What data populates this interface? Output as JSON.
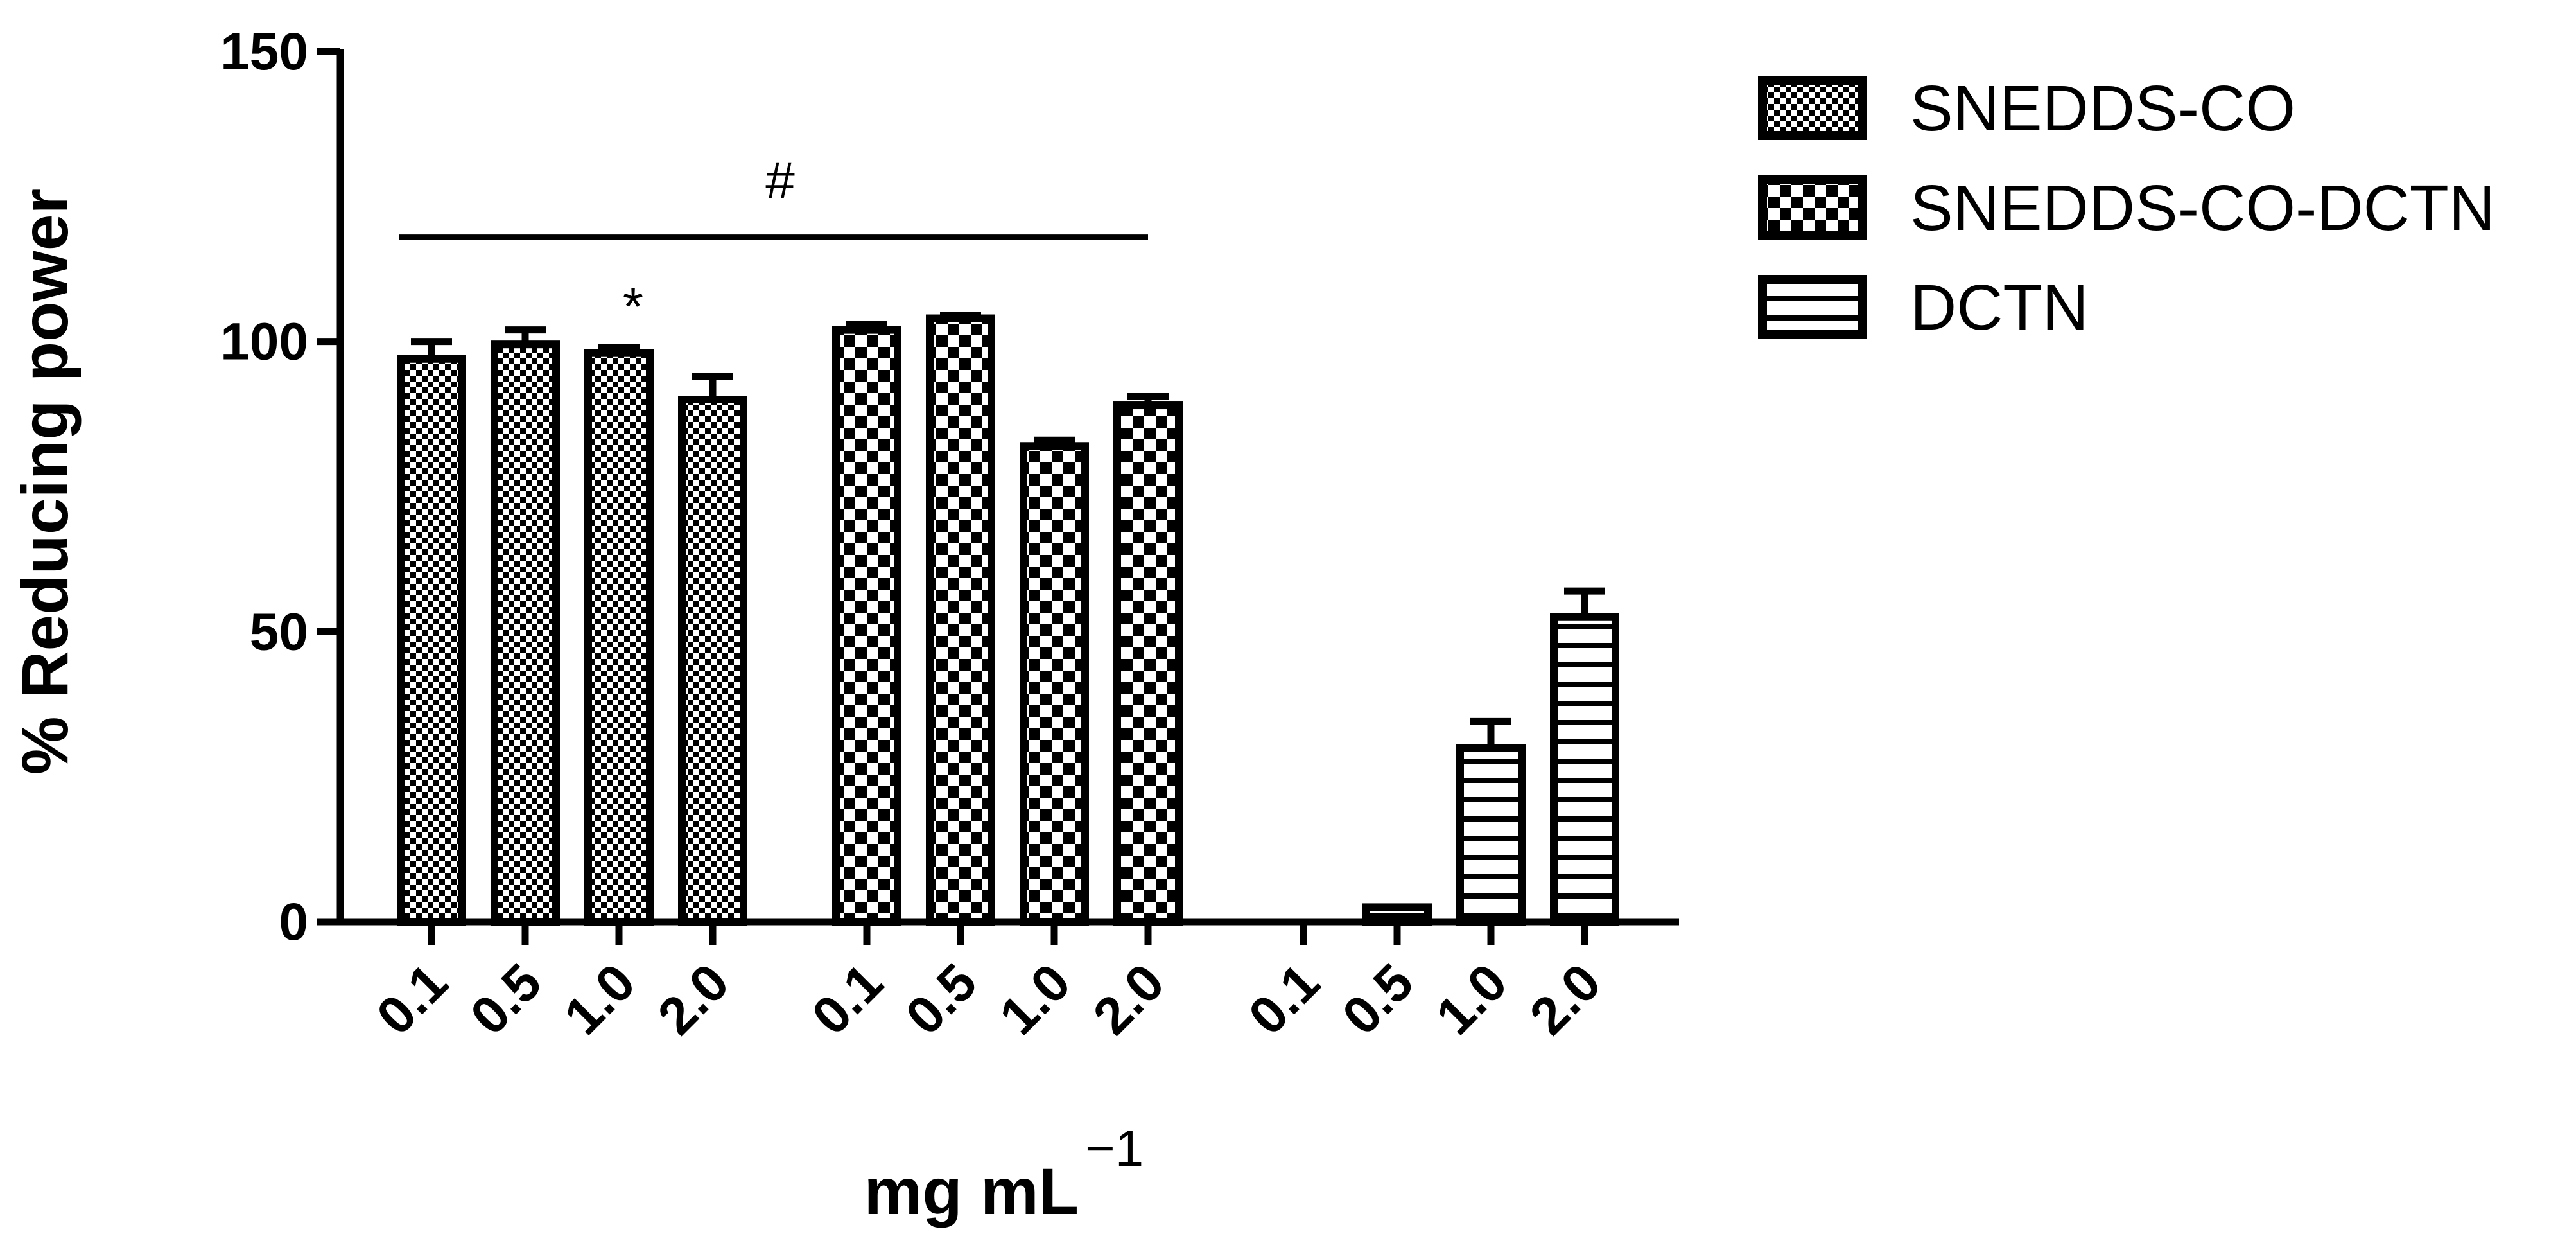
{
  "chart_data": {
    "type": "bar",
    "title": "",
    "ylabel": "% Reducing power",
    "xlabel": "mg mL",
    "xlabel_superscript": "−1",
    "ylim": [
      0,
      150
    ],
    "yticks": [
      0,
      50,
      100,
      150
    ],
    "grid": false,
    "legend_position": "top-right",
    "categories": [
      "0.1",
      "0.5",
      "1.0",
      "2.0"
    ],
    "series": [
      {
        "name": "SNEDDS-CO",
        "pattern": "fine-dots",
        "values": [
          97,
          99.5,
          98,
          90
        ],
        "errors": [
          3,
          2.5,
          1,
          4
        ]
      },
      {
        "name": "SNEDDS-CO-DCTN",
        "pattern": "checker",
        "values": [
          102,
          104,
          82,
          89
        ],
        "errors": [
          1,
          0.5,
          1,
          1.5
        ]
      },
      {
        "name": "DCTN",
        "pattern": "horizontal-lines",
        "values": [
          0,
          2.5,
          30,
          52.5
        ],
        "errors": [
          0,
          0,
          4.5,
          4.5
        ]
      }
    ],
    "annotations": [
      {
        "text": "#",
        "type": "bracket",
        "from_group": 0,
        "to_group": 1,
        "y": 118
      },
      {
        "text": "*",
        "group": 0,
        "category": "1.0",
        "y": 104
      }
    ]
  },
  "colors": {
    "ink": "#000000",
    "fill": "#ffffff"
  }
}
